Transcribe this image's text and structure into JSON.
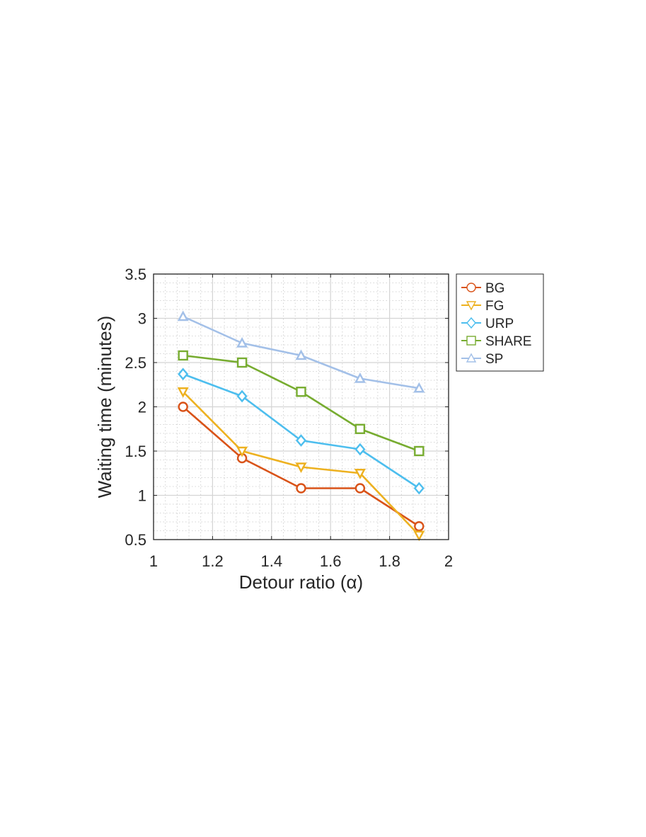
{
  "chart_data": {
    "type": "line",
    "title": "",
    "xlabel": "Detour ratio (α)",
    "ylabel": "Waiting time (minutes)",
    "xlim": [
      1,
      2
    ],
    "ylim": [
      0.5,
      3.5
    ],
    "x_ticks": [
      "1",
      "1.2",
      "1.4",
      "1.6",
      "1.8",
      "2"
    ],
    "y_ticks": [
      "0.5",
      "1",
      "1.5",
      "2",
      "2.5",
      "3",
      "3.5"
    ],
    "x": [
      1.1,
      1.3,
      1.5,
      1.7,
      1.9
    ],
    "grid": true,
    "minor_grid": true,
    "legend_position": "outside-top-right",
    "series": [
      {
        "name": "BG",
        "color": "#D95319",
        "marker": "circle",
        "values": [
          2.0,
          1.42,
          1.08,
          1.08,
          0.65
        ]
      },
      {
        "name": "FG",
        "color": "#EDB120",
        "marker": "triangle-down",
        "values": [
          2.17,
          1.5,
          1.32,
          1.25,
          0.55
        ]
      },
      {
        "name": "URP",
        "color": "#4DBEEE",
        "marker": "diamond",
        "values": [
          2.37,
          2.12,
          1.62,
          1.52,
          1.08
        ]
      },
      {
        "name": "SHARE",
        "color": "#77AC30",
        "marker": "square",
        "values": [
          2.58,
          2.5,
          2.17,
          1.75,
          1.5
        ]
      },
      {
        "name": "SP",
        "color": "#A3C0E8",
        "marker": "triangle-up",
        "values": [
          3.02,
          2.72,
          2.58,
          2.32,
          2.21
        ]
      }
    ]
  }
}
